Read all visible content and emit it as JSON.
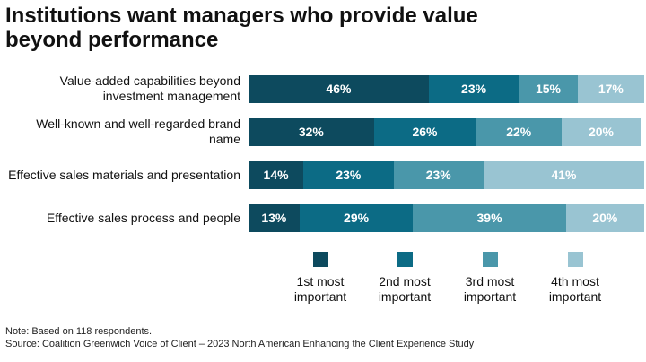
{
  "chart_data": {
    "type": "stacked-bar-horizontal",
    "title": "Institutions want managers who provide value beyond performance",
    "categories": [
      "Value-added capabilities beyond investment management",
      "Well-known and well-regarded brand name",
      "Effective sales materials and presentation",
      "Effective sales process and people"
    ],
    "series": [
      {
        "name": "1st most important",
        "color": "#0d4a5e",
        "values": [
          46,
          32,
          14,
          13
        ],
        "value_labels": [
          "46%",
          "32%",
          "14%",
          "13%"
        ]
      },
      {
        "name": "2nd most important",
        "color": "#0c6b85",
        "values": [
          23,
          26,
          23,
          29
        ],
        "value_labels": [
          "23%",
          "26%",
          "23%",
          "29%"
        ]
      },
      {
        "name": "3rd most important",
        "color": "#4a97aa",
        "values": [
          15,
          22,
          23,
          39
        ],
        "value_labels": [
          "15%",
          "22%",
          "23%",
          "39%"
        ]
      },
      {
        "name": "4th most important",
        "color": "#99c4d2",
        "values": [
          17,
          20,
          41,
          20
        ],
        "value_labels": [
          "17%",
          "20%",
          "41%",
          "20%"
        ]
      }
    ],
    "legend": "bottom",
    "notes": [
      "Note: Based on 118 respondents.",
      "Source: Coalition Greenwich Voice of Client – 2023 North American Enhancing the Client Experience Study"
    ]
  }
}
